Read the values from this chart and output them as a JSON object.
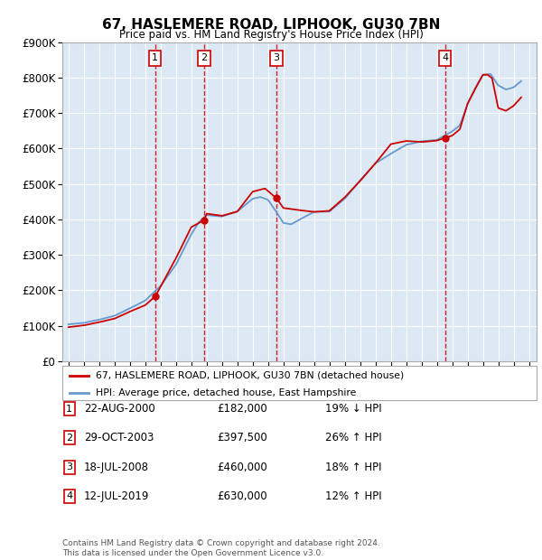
{
  "title": "67, HASLEMERE ROAD, LIPHOOK, GU30 7BN",
  "subtitle": "Price paid vs. HM Land Registry's House Price Index (HPI)",
  "ylim": [
    0,
    900000
  ],
  "yticks": [
    0,
    100000,
    200000,
    300000,
    400000,
    500000,
    600000,
    700000,
    800000,
    900000
  ],
  "xlim_start": 1994.6,
  "xlim_end": 2025.5,
  "background_color": "#dce9f5",
  "grid_color": "#ffffff",
  "red_line_color": "#cc0000",
  "blue_line_color": "#6699cc",
  "transactions": [
    {
      "num": 1,
      "date": "22-AUG-2000",
      "year": 2000.64,
      "price": 182000,
      "label": "19% ↓ HPI"
    },
    {
      "num": 2,
      "date": "29-OCT-2003",
      "year": 2003.83,
      "price": 397500,
      "label": "26% ↑ HPI"
    },
    {
      "num": 3,
      "date": "18-JUL-2008",
      "year": 2008.54,
      "price": 460000,
      "label": "18% ↑ HPI"
    },
    {
      "num": 4,
      "date": "12-JUL-2019",
      "year": 2019.53,
      "price": 630000,
      "label": "12% ↑ HPI"
    }
  ],
  "legend_line1": "67, HASLEMERE ROAD, LIPHOOK, GU30 7BN (detached house)",
  "legend_line2": "HPI: Average price, detached house, East Hampshire",
  "footnote": "Contains HM Land Registry data © Crown copyright and database right 2024.\nThis data is licensed under the Open Government Licence v3.0.",
  "hpi_anchors_x": [
    1995,
    1996,
    1997,
    1998,
    1999,
    2000,
    2001,
    2002,
    2003,
    2003.5,
    2004,
    2005,
    2006,
    2007,
    2007.5,
    2008,
    2008.5,
    2009,
    2009.5,
    2010,
    2011,
    2012,
    2013,
    2014,
    2015,
    2016,
    2017,
    2018,
    2019,
    2020,
    2020.5,
    2021,
    2021.5,
    2022,
    2022.5,
    2023,
    2023.5,
    2024,
    2024.5
  ],
  "hpi_anchors_y": [
    104000,
    108000,
    117000,
    128000,
    149000,
    171000,
    212000,
    272000,
    358000,
    392000,
    412000,
    408000,
    422000,
    458000,
    463000,
    455000,
    424000,
    390000,
    386000,
    398000,
    421000,
    422000,
    458000,
    510000,
    558000,
    585000,
    610000,
    620000,
    624000,
    648000,
    665000,
    724000,
    770000,
    806000,
    810000,
    778000,
    766000,
    772000,
    790000
  ],
  "price_anchors_x": [
    1995,
    1996,
    1997,
    1998,
    1999,
    2000.0,
    2000.63,
    2000.65,
    2001,
    2002,
    2003.0,
    2003.82,
    2003.84,
    2004,
    2005,
    2006,
    2007,
    2007.8,
    2008.0,
    2008.53,
    2008.55,
    2009,
    2010,
    2011,
    2012,
    2013,
    2014,
    2015,
    2016,
    2017,
    2018,
    2019.0,
    2019.52,
    2019.54,
    2020,
    2020.5,
    2021,
    2021.5,
    2022,
    2022.3,
    2022.6,
    2023,
    2023.5,
    2024,
    2024.5
  ],
  "price_anchors_y": [
    96000,
    101000,
    110000,
    120000,
    140000,
    158000,
    182000,
    182000,
    210000,
    290000,
    378000,
    397500,
    397500,
    416000,
    410000,
    422000,
    478000,
    487000,
    480000,
    460000,
    460000,
    432000,
    426000,
    421000,
    424000,
    462000,
    508000,
    558000,
    612000,
    621000,
    618000,
    622000,
    630000,
    630000,
    636000,
    654000,
    726000,
    768000,
    808000,
    808000,
    798000,
    714000,
    706000,
    720000,
    744000
  ]
}
